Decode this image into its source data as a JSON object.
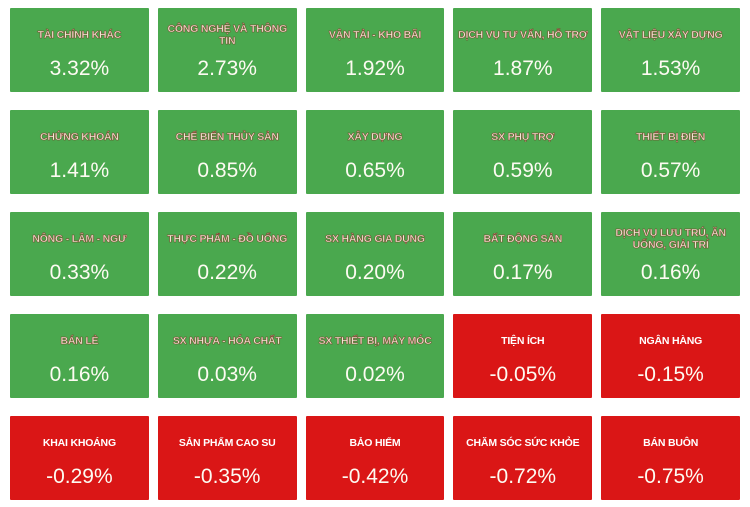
{
  "colors": {
    "page_background": "#FFFFFF",
    "up_tile": "#4AA84E",
    "down_tile": "#DA1616",
    "up_title_text": "#F3ECD9",
    "down_title_text": "#FFFFFF",
    "value_text": "#FDFBF2"
  },
  "chart_data": {
    "type": "heatmap",
    "title": "",
    "unit": "%",
    "layout": {
      "columns": 5,
      "rows": 5,
      "order": "row-major"
    },
    "legend": {
      "up_color_meaning": "sector gain",
      "down_color_meaning": "sector loss"
    },
    "sectors": [
      {
        "name": "TÀI CHÍNH KHÁC",
        "value": 3.32,
        "value_label": "3.32%",
        "direction": "up"
      },
      {
        "name": "CÔNG NGHỆ VÀ THÔNG TIN",
        "value": 2.73,
        "value_label": "2.73%",
        "direction": "up"
      },
      {
        "name": "VẬN TẢI - KHO BÃI",
        "value": 1.92,
        "value_label": "1.92%",
        "direction": "up"
      },
      {
        "name": "DỊCH VỤ TƯ VẤN, HỖ TRỢ",
        "value": 1.87,
        "value_label": "1.87%",
        "direction": "up"
      },
      {
        "name": "VẬT LIỆU XÂY DỰNG",
        "value": 1.53,
        "value_label": "1.53%",
        "direction": "up"
      },
      {
        "name": "CHỨNG KHOÁN",
        "value": 1.41,
        "value_label": "1.41%",
        "direction": "up"
      },
      {
        "name": "CHẾ BIẾN THỦY SẢN",
        "value": 0.85,
        "value_label": "0.85%",
        "direction": "up"
      },
      {
        "name": "XÂY DỰNG",
        "value": 0.65,
        "value_label": "0.65%",
        "direction": "up"
      },
      {
        "name": "SX PHỤ TRỢ",
        "value": 0.59,
        "value_label": "0.59%",
        "direction": "up"
      },
      {
        "name": "THIẾT BỊ ĐIỆN",
        "value": 0.57,
        "value_label": "0.57%",
        "direction": "up"
      },
      {
        "name": "NÔNG - LÂM - NGƯ",
        "value": 0.33,
        "value_label": "0.33%",
        "direction": "up"
      },
      {
        "name": "THỰC PHẨM - ĐỒ UỐNG",
        "value": 0.22,
        "value_label": "0.22%",
        "direction": "up"
      },
      {
        "name": "SX HÀNG GIA DỤNG",
        "value": 0.2,
        "value_label": "0.20%",
        "direction": "up"
      },
      {
        "name": "BẤT ĐỘNG SẢN",
        "value": 0.17,
        "value_label": "0.17%",
        "direction": "up"
      },
      {
        "name": "DỊCH VỤ LƯU TRÚ, ĂN UỐNG, GIẢI TRÍ",
        "value": 0.16,
        "value_label": "0.16%",
        "direction": "up"
      },
      {
        "name": "BÁN LẺ",
        "value": 0.16,
        "value_label": "0.16%",
        "direction": "up"
      },
      {
        "name": "SX NHỰA - HÓA CHẤT",
        "value": 0.03,
        "value_label": "0.03%",
        "direction": "up"
      },
      {
        "name": "SX THIẾT BỊ, MÁY MÓC",
        "value": 0.02,
        "value_label": "0.02%",
        "direction": "up"
      },
      {
        "name": "TIỆN ÍCH",
        "value": -0.05,
        "value_label": "-0.05%",
        "direction": "down"
      },
      {
        "name": "NGÂN HÀNG",
        "value": -0.15,
        "value_label": "-0.15%",
        "direction": "down"
      },
      {
        "name": "KHAI KHOÁNG",
        "value": -0.29,
        "value_label": "-0.29%",
        "direction": "down"
      },
      {
        "name": "SẢN PHẨM CAO SU",
        "value": -0.35,
        "value_label": "-0.35%",
        "direction": "down"
      },
      {
        "name": "BẢO HIỂM",
        "value": -0.42,
        "value_label": "-0.42%",
        "direction": "down"
      },
      {
        "name": "CHĂM SÓC SỨC KHỎE",
        "value": -0.72,
        "value_label": "-0.72%",
        "direction": "down"
      },
      {
        "name": "BÁN BUÔN",
        "value": -0.75,
        "value_label": "-0.75%",
        "direction": "down"
      }
    ]
  }
}
